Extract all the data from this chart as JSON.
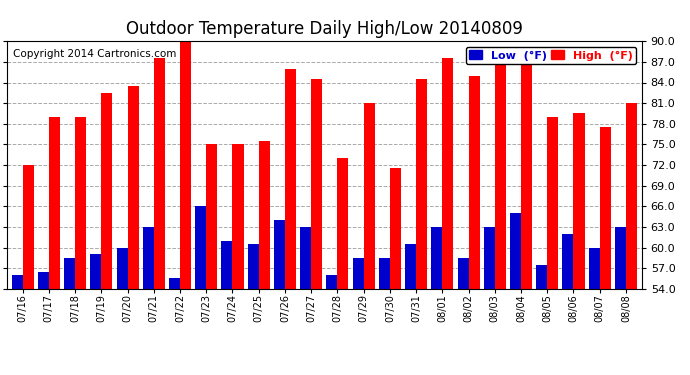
{
  "title": "Outdoor Temperature Daily High/Low 20140809",
  "copyright": "Copyright 2014 Cartronics.com",
  "categories": [
    "07/16",
    "07/17",
    "07/18",
    "07/19",
    "07/20",
    "07/21",
    "07/22",
    "07/23",
    "07/24",
    "07/25",
    "07/26",
    "07/27",
    "07/28",
    "07/29",
    "07/30",
    "07/31",
    "08/01",
    "08/02",
    "08/03",
    "08/04",
    "08/05",
    "08/06",
    "08/07",
    "08/08"
  ],
  "high_values": [
    72.0,
    79.0,
    79.0,
    82.5,
    83.5,
    87.5,
    91.0,
    75.0,
    75.0,
    75.5,
    86.0,
    84.5,
    73.0,
    81.0,
    71.5,
    84.5,
    87.5,
    85.0,
    88.5,
    88.5,
    79.0,
    79.5,
    77.5,
    81.0
  ],
  "low_values": [
    56.0,
    56.5,
    58.5,
    59.0,
    60.0,
    63.0,
    55.5,
    66.0,
    61.0,
    60.5,
    64.0,
    63.0,
    56.0,
    58.5,
    58.5,
    60.5,
    63.0,
    58.5,
    63.0,
    65.0,
    57.5,
    62.0,
    60.0,
    63.0
  ],
  "high_color": "#FF0000",
  "low_color": "#0000CC",
  "ylim_min": 54.0,
  "ylim_max": 90.0,
  "yticks": [
    54.0,
    57.0,
    60.0,
    63.0,
    66.0,
    69.0,
    72.0,
    75.0,
    78.0,
    81.0,
    84.0,
    87.0,
    90.0
  ],
  "bg_color": "#FFFFFF",
  "grid_color": "#AAAAAA",
  "title_fontsize": 12,
  "copyright_fontsize": 7.5,
  "legend_low_label": "Low  (°F)",
  "legend_high_label": "High  (°F)"
}
